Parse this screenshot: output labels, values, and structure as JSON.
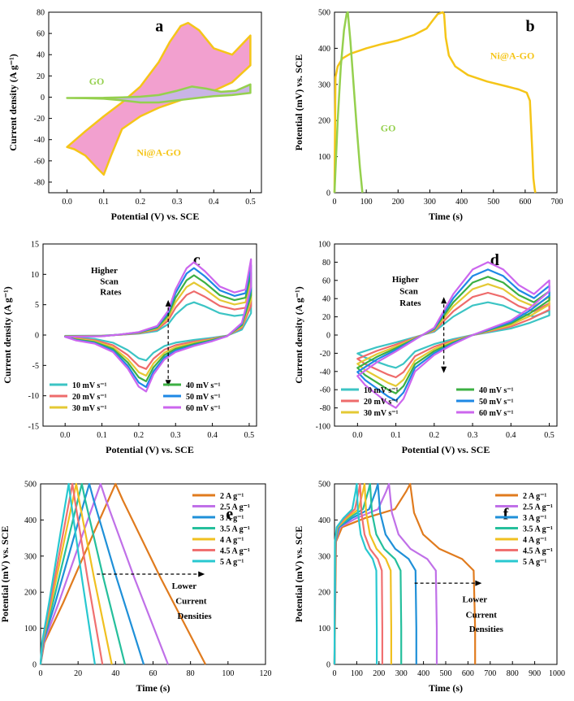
{
  "figure": {
    "description_panels": [
      "a",
      "b",
      "c",
      "d",
      "e",
      "f"
    ]
  },
  "colors": {
    "pink": "#F2A0CF",
    "yellow": "#F5C518",
    "green": "#95D04E",
    "violet": "#C9B4E6",
    "cyan": "#3CC4C4",
    "red": "#EE6B6B",
    "gold": "#E4C934",
    "lgreen": "#3CB043",
    "blue": "#1E88E5",
    "magenta": "#CC66EE",
    "orange": "#E07B1E",
    "purple": "#C070E8",
    "sky": "#1F90D8",
    "teal": "#25BF9C",
    "amber": "#F0C020",
    "salmon": "#F07070",
    "aqua": "#28C8D0"
  },
  "chart_data": [
    {
      "id": "a",
      "type": "line",
      "panel_label": "a",
      "xlabel": "Potential (V) vs. SCE",
      "ylabel": "Current density (A g⁻¹)",
      "xlim": [
        -0.05,
        0.53
      ],
      "ylim": [
        -90,
        80
      ],
      "xticks": [
        0.0,
        0.1,
        0.2,
        0.3,
        0.4,
        0.5
      ],
      "xtick_labels": [
        "0.0",
        "0.1",
        "0.2",
        "0.3",
        "0.4",
        "0.5"
      ],
      "yticks": [
        -80,
        -60,
        -40,
        -20,
        0,
        20,
        40,
        60,
        80
      ],
      "ytick_labels": [
        "-80",
        "-60",
        "-40",
        "-20",
        "0",
        "20",
        "40",
        "60",
        "80"
      ],
      "series": [
        {
          "name": "Ni@A-GO",
          "color": "#F5C518",
          "fill": "#F2A0CF",
          "closed": true,
          "x": [
            0.0,
            0.05,
            0.1,
            0.15,
            0.2,
            0.25,
            0.28,
            0.31,
            0.33,
            0.36,
            0.4,
            0.45,
            0.5,
            0.5,
            0.45,
            0.4,
            0.35,
            0.3,
            0.25,
            0.2,
            0.15,
            0.12,
            0.1,
            0.08,
            0.05,
            0.02,
            0.0
          ],
          "y": [
            -47,
            -32,
            -18,
            -5,
            10,
            33,
            52,
            67,
            70,
            63,
            46,
            40,
            58,
            30,
            14,
            6,
            2,
            -4,
            -10,
            -18,
            -30,
            -55,
            -73,
            -66,
            -55,
            -49,
            -47
          ]
        },
        {
          "name": "GO",
          "color": "#95D04E",
          "fill": "#C9B4E6",
          "closed": true,
          "x": [
            0.0,
            0.1,
            0.15,
            0.2,
            0.25,
            0.3,
            0.34,
            0.38,
            0.42,
            0.46,
            0.5,
            0.5,
            0.45,
            0.4,
            0.35,
            0.3,
            0.25,
            0.2,
            0.15,
            0.1,
            0.05,
            0.0
          ],
          "y": [
            -0.8,
            -0.6,
            -0.2,
            0.4,
            2,
            6,
            10,
            8,
            5,
            6,
            12,
            4,
            2,
            1,
            -1,
            -3,
            -5,
            -5,
            -3,
            -1.5,
            -1,
            -0.8
          ]
        }
      ],
      "annotations": [
        {
          "text": "GO",
          "x": 0.06,
          "y": 12,
          "color": "#95D04E"
        },
        {
          "text": "Ni@A-GO",
          "x": 0.19,
          "y": -55,
          "color": "#F5C518"
        }
      ]
    },
    {
      "id": "b",
      "type": "line",
      "panel_label": "b",
      "xlabel": "Time (s)",
      "ylabel": "Potential (mV) vs. SCE",
      "xlim": [
        0,
        700
      ],
      "ylim": [
        0,
        500
      ],
      "xticks": [
        0,
        100,
        200,
        300,
        400,
        500,
        600,
        700
      ],
      "xtick_labels": [
        "0",
        "100",
        "200",
        "300",
        "400",
        "500",
        "600",
        "700"
      ],
      "yticks": [
        0,
        100,
        200,
        300,
        400,
        500
      ],
      "ytick_labels": [
        "0",
        "100",
        "200",
        "300",
        "400",
        "500"
      ],
      "series": [
        {
          "name": "Ni@A-GO",
          "color": "#F5C518",
          "x": [
            0,
            3,
            10,
            25,
            50,
            100,
            150,
            200,
            250,
            290,
            310,
            325,
            335,
            340,
            345,
            350,
            360,
            380,
            420,
            480,
            540,
            580,
            605,
            615,
            622,
            626,
            630,
            632
          ],
          "y": [
            0,
            320,
            350,
            372,
            385,
            400,
            412,
            422,
            437,
            455,
            478,
            495,
            498,
            500,
            495,
            430,
            380,
            350,
            326,
            308,
            295,
            286,
            277,
            255,
            120,
            40,
            10,
            0
          ]
        },
        {
          "name": "GO",
          "color": "#95D04E",
          "x": [
            0,
            10,
            20,
            30,
            38,
            42,
            50,
            60,
            70,
            80,
            88
          ],
          "y": [
            0,
            200,
            350,
            450,
            495,
            500,
            420,
            300,
            180,
            70,
            0
          ]
        }
      ],
      "annotations": [
        {
          "text": "Ni@A-GO",
          "x": 490,
          "y": 370,
          "color": "#F5C518"
        },
        {
          "text": "GO",
          "x": 145,
          "y": 170,
          "color": "#95D04E"
        }
      ]
    },
    {
      "id": "c",
      "type": "line",
      "panel_label": "c",
      "xlabel": "Potential (V) vs. SCE",
      "ylabel": "Current density (A g⁻¹)",
      "xlim": [
        -0.06,
        0.52
      ],
      "ylim": [
        -15,
        15
      ],
      "xticks": [
        0.0,
        0.1,
        0.2,
        0.3,
        0.4,
        0.5
      ],
      "xtick_labels": [
        "0.0",
        "0.1",
        "0.2",
        "0.3",
        "0.4",
        "0.5"
      ],
      "yticks": [
        -15,
        -10,
        -5,
        0,
        5,
        10,
        15
      ],
      "ytick_labels": [
        "-15",
        "-10",
        "-5",
        "0",
        "5",
        "10",
        "15"
      ],
      "series": [
        {
          "name": "10 mV s⁻¹",
          "color": "#3CC4C4",
          "scale": 0.45
        },
        {
          "name": "20 mV s⁻¹",
          "color": "#EE6B6B",
          "scale": 0.6
        },
        {
          "name": "30 mV s⁻¹",
          "color": "#E4C934",
          "scale": 0.72
        },
        {
          "name": "40 mV s⁻¹",
          "color": "#3CB043",
          "scale": 0.82
        },
        {
          "name": "50 mV s⁻¹",
          "color": "#1E88E5",
          "scale": 0.92
        },
        {
          "name": "60 mV s⁻¹",
          "color": "#CC66EE",
          "scale": 1.0
        }
      ],
      "base_curve": {
        "x": [
          0.0,
          0.1,
          0.15,
          0.2,
          0.25,
          0.28,
          0.3,
          0.33,
          0.35,
          0.38,
          0.42,
          0.46,
          0.49,
          0.505,
          0.505,
          0.48,
          0.44,
          0.4,
          0.35,
          0.3,
          0.27,
          0.24,
          0.22,
          0.2,
          0.17,
          0.13,
          0.08,
          0.03,
          0.0
        ],
        "y": [
          -0.3,
          -0.2,
          0.1,
          0.5,
          1.5,
          4,
          7.5,
          11,
          12,
          10.5,
          8,
          7,
          7.5,
          12.5,
          8,
          2,
          -0.2,
          -1,
          -1.8,
          -2.8,
          -4,
          -6.5,
          -9.3,
          -8.5,
          -5.5,
          -2.8,
          -1.4,
          -0.9,
          -0.3
        ]
      },
      "annotations": [
        {
          "text": "Higher",
          "x": 0.07,
          "y": 10.2
        },
        {
          "text": "Scan",
          "x": 0.095,
          "y": 8.4
        },
        {
          "text": "Rates",
          "x": 0.095,
          "y": 6.6
        }
      ]
    },
    {
      "id": "d",
      "type": "line",
      "panel_label": "d",
      "xlabel": "Potential (V) vs. SCE",
      "ylabel": "Current density (A g⁻¹)",
      "xlim": [
        -0.06,
        0.52
      ],
      "ylim": [
        -100,
        100
      ],
      "xticks": [
        0.0,
        0.1,
        0.2,
        0.3,
        0.4,
        0.5
      ],
      "xtick_labels": [
        "0.0",
        "0.1",
        "0.2",
        "0.3",
        "0.4",
        "0.5"
      ],
      "yticks": [
        -100,
        -80,
        -60,
        -40,
        -20,
        0,
        20,
        40,
        60,
        80,
        100
      ],
      "ytick_labels": [
        "-100",
        "-80",
        "-60",
        "-40",
        "-20",
        "0",
        "20",
        "40",
        "60",
        "80",
        "100"
      ],
      "series": [
        {
          "name": "10 mV s⁻¹",
          "color": "#3CC4C4",
          "scale": 0.45
        },
        {
          "name": "20 mV s⁻¹",
          "color": "#EE6B6B",
          "scale": 0.58
        },
        {
          "name": "30 mV s⁻¹",
          "color": "#E4C934",
          "scale": 0.7
        },
        {
          "name": "40 mV s⁻¹",
          "color": "#3CB043",
          "scale": 0.8
        },
        {
          "name": "50 mV s⁻¹",
          "color": "#1E88E5",
          "scale": 0.9
        },
        {
          "name": "60 mV s⁻¹",
          "color": "#CC66EE",
          "scale": 1.0
        }
      ],
      "base_curve": {
        "x": [
          0.0,
          0.05,
          0.1,
          0.15,
          0.2,
          0.25,
          0.3,
          0.34,
          0.38,
          0.42,
          0.46,
          0.5,
          0.5,
          0.45,
          0.4,
          0.35,
          0.3,
          0.25,
          0.2,
          0.15,
          0.12,
          0.1,
          0.08,
          0.05,
          0.02,
          0.0
        ],
        "y": [
          -45,
          -30,
          -18,
          -5,
          8,
          45,
          72,
          80,
          72,
          55,
          45,
          60,
          48,
          30,
          16,
          8,
          0,
          -10,
          -22,
          -40,
          -70,
          -80,
          -75,
          -65,
          -55,
          -45
        ]
      },
      "annotations": [
        {
          "text": "Higher",
          "x": 0.09,
          "y": 58
        },
        {
          "text": "Scan",
          "x": 0.11,
          "y": 45
        },
        {
          "text": "Rates",
          "x": 0.11,
          "y": 32
        }
      ]
    },
    {
      "id": "e",
      "type": "line",
      "panel_label": "e",
      "xlabel": "Time (s)",
      "ylabel": "Potential (mV) vs. SCE",
      "xlim": [
        0,
        120
      ],
      "ylim": [
        0,
        500
      ],
      "xticks": [
        0,
        20,
        40,
        60,
        80,
        100,
        120
      ],
      "xtick_labels": [
        "0",
        "20",
        "40",
        "60",
        "80",
        "100",
        "120"
      ],
      "yticks": [
        0,
        100,
        200,
        300,
        400,
        500
      ],
      "ytick_labels": [
        "0",
        "100",
        "200",
        "300",
        "400",
        "500"
      ],
      "series": [
        {
          "name": "2 A g⁻¹",
          "color": "#E07B1E",
          "peak_t": 40,
          "end_t": 88
        },
        {
          "name": "2.5 A g⁻¹",
          "color": "#C070E8",
          "peak_t": 32,
          "end_t": 68
        },
        {
          "name": "3 A g⁻¹",
          "color": "#1F90D8",
          "peak_t": 26,
          "end_t": 55
        },
        {
          "name": "3.5 A g⁻¹",
          "color": "#25BF9C",
          "peak_t": 22,
          "end_t": 45
        },
        {
          "name": "4 A g⁻¹",
          "color": "#F0C020",
          "peak_t": 19,
          "end_t": 38
        },
        {
          "name": "4.5 A g⁻¹",
          "color": "#F07070",
          "peak_t": 17,
          "end_t": 33
        },
        {
          "name": "5 A g⁻¹",
          "color": "#28C8D0",
          "peak_t": 15,
          "end_t": 29
        }
      ],
      "annotations": [
        {
          "text": "Lower",
          "x": 70,
          "y": 210
        },
        {
          "text": "Current",
          "x": 72,
          "y": 168
        },
        {
          "text": "Densities",
          "x": 73,
          "y": 126
        }
      ]
    },
    {
      "id": "f",
      "type": "line",
      "panel_label": "f",
      "xlabel": "Time (s)",
      "ylabel": "Potential (mV) vs. SCE",
      "xlim": [
        0,
        1000
      ],
      "ylim": [
        0,
        500
      ],
      "xticks": [
        0,
        100,
        200,
        300,
        400,
        500,
        600,
        700,
        800,
        900,
        1000
      ],
      "xtick_labels": [
        "0",
        "100",
        "200",
        "300",
        "400",
        "500",
        "600",
        "700",
        "800",
        "900",
        "1000"
      ],
      "yticks": [
        0,
        100,
        200,
        300,
        400,
        500
      ],
      "ytick_labels": [
        "0",
        "100",
        "200",
        "300",
        "400",
        "500"
      ],
      "series": [
        {
          "name": "2 A g⁻¹",
          "color": "#E07B1E",
          "peak_t": 340,
          "end_t": 632
        },
        {
          "name": "2.5 A g⁻¹",
          "color": "#C070E8",
          "peak_t": 245,
          "end_t": 460
        },
        {
          "name": "3 A g⁻¹",
          "color": "#1F90D8",
          "peak_t": 195,
          "end_t": 368
        },
        {
          "name": "3.5 A g⁻¹",
          "color": "#25BF9C",
          "peak_t": 160,
          "end_t": 300
        },
        {
          "name": "4 A g⁻¹",
          "color": "#F0C020",
          "peak_t": 135,
          "end_t": 255
        },
        {
          "name": "4.5 A g⁻¹",
          "color": "#F07070",
          "peak_t": 115,
          "end_t": 215
        },
        {
          "name": "5 A g⁻¹",
          "color": "#28C8D0",
          "peak_t": 100,
          "end_t": 190
        }
      ],
      "annotations": [
        {
          "text": "Lower",
          "x": 575,
          "y": 172
        },
        {
          "text": "Current",
          "x": 590,
          "y": 130
        },
        {
          "text": "Densities",
          "x": 605,
          "y": 90
        }
      ]
    }
  ]
}
